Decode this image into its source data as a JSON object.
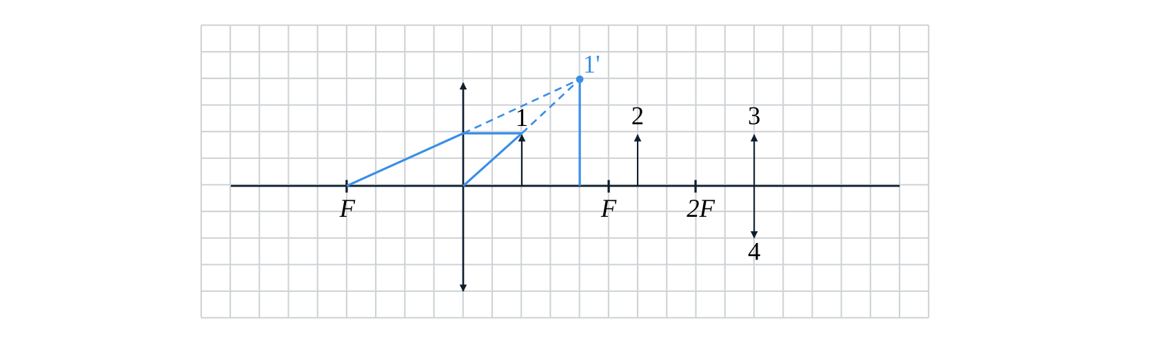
{
  "labels": {
    "object_1": "1",
    "image_1": "1'",
    "object_2": "2",
    "object_3": "3",
    "object_4": "4",
    "focus_left": "F",
    "focus_right": "F",
    "double_focus": "2F"
  }
}
